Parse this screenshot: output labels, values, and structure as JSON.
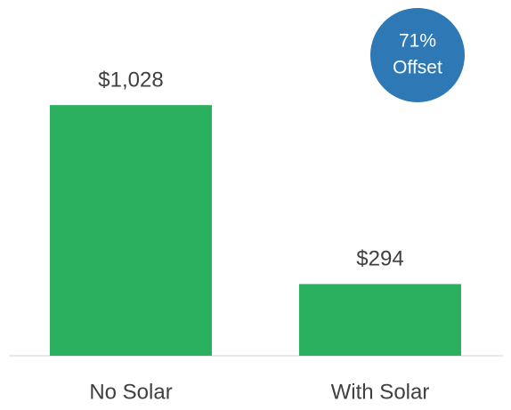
{
  "chart_data": {
    "type": "bar",
    "categories": [
      "No Solar",
      "With Solar"
    ],
    "values": [
      1028,
      294
    ],
    "value_labels": [
      "$1,028",
      "$294"
    ],
    "color": "#2ab05f",
    "ylim": [
      0,
      1200
    ],
    "annotation": {
      "lines": [
        "71%",
        "Offset"
      ],
      "color": "#2e78b5"
    }
  }
}
